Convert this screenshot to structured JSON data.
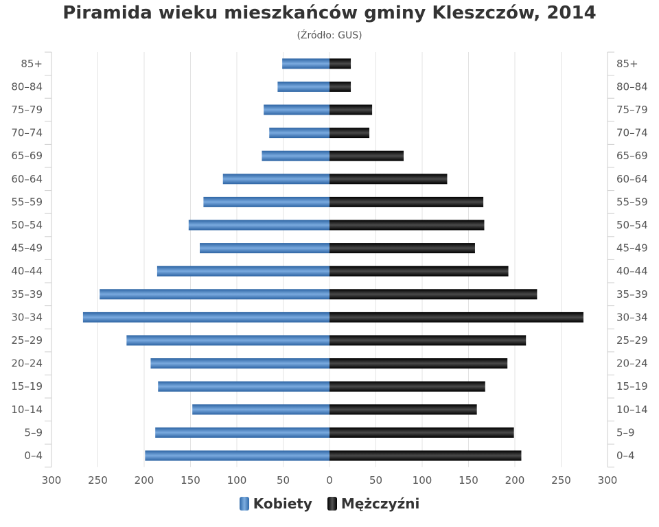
{
  "chart_data": {
    "type": "bar",
    "title": "Piramida wieku mieszkańców gminy Kleszczów, 2014",
    "subtitle": "(Źródło: GUS)",
    "categories": [
      "0–4",
      "5–9",
      "10–14",
      "15–19",
      "20–24",
      "25–29",
      "30–34",
      "35–39",
      "40–44",
      "45–49",
      "50–54",
      "55–59",
      "60–64",
      "65–69",
      "70–74",
      "75–79",
      "80–84",
      "85+"
    ],
    "series": [
      {
        "name": "Kobiety",
        "color": "#3a74b8",
        "values": [
          199,
          188,
          148,
          185,
          193,
          219,
          266,
          248,
          186,
          140,
          152,
          136,
          115,
          73,
          65,
          71,
          56,
          51
        ]
      },
      {
        "name": "Mężczyźni",
        "color": "#1a1a1a",
        "values": [
          207,
          199,
          159,
          168,
          192,
          212,
          274,
          224,
          193,
          157,
          167,
          166,
          127,
          80,
          43,
          46,
          23,
          23
        ]
      }
    ],
    "x_ticks": [
      "300",
      "250",
      "200",
      "150",
      "100",
      "50",
      "0",
      "50",
      "100",
      "150",
      "200",
      "250",
      "300"
    ],
    "xlim": [
      -300,
      300
    ],
    "grid": true,
    "legend": "bottom"
  }
}
